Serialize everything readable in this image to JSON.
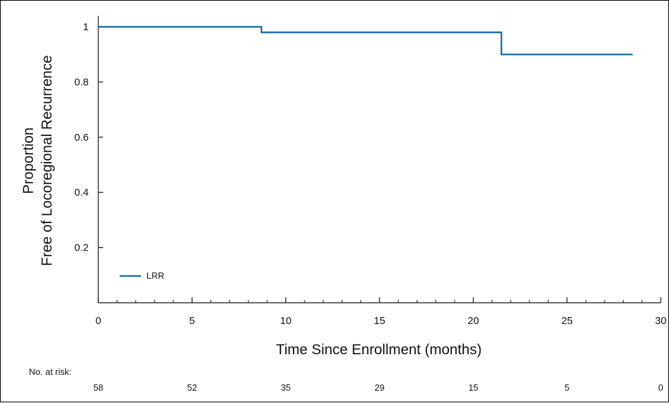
{
  "chart_data": {
    "type": "line",
    "step": true,
    "title": "",
    "xlabel": "Time Since Enrollment (months)",
    "ylabel_lines": [
      "Proportion",
      "Free of Locoregional Recurrence"
    ],
    "xlim": [
      0,
      30
    ],
    "ylim": [
      0,
      1.04
    ],
    "x_ticks": [
      0,
      5,
      10,
      15,
      20,
      25,
      30
    ],
    "y_ticks": [
      0.2,
      0.4,
      0.6,
      0.8,
      1
    ],
    "y_tick_labels": [
      "0.2",
      "0.4",
      "0.6",
      "0.8",
      "1"
    ],
    "grid": false,
    "legend_position": "bottom-left",
    "series": [
      {
        "name": "LRR",
        "color": "#1b6fa0",
        "x": [
          0,
          8.7,
          8.7,
          21.5,
          21.5,
          28.5
        ],
        "y": [
          1,
          1,
          0.98,
          0.98,
          0.9,
          0.9
        ]
      }
    ],
    "risk_table": {
      "title": "No. at risk:",
      "values": [
        "58",
        "52",
        "35",
        "29",
        "15",
        "5",
        "0"
      ]
    }
  }
}
